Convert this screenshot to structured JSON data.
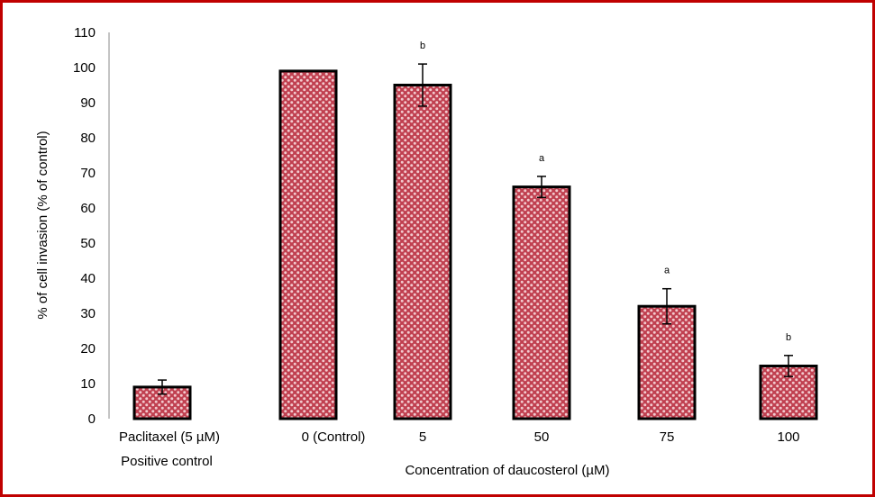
{
  "colors": {
    "frame": "#c00000",
    "bar_fill": "#c04050",
    "bar_pattern_dots": "#f2c9cd",
    "bar_outline": "#000000"
  },
  "chart_data": {
    "type": "bar",
    "categories": [
      "Paclitaxel (5 µM)",
      "0 (Control)",
      "5",
      "50",
      "75",
      "100"
    ],
    "category_sublabel": [
      "Positive control",
      "",
      "",
      "",
      "",
      ""
    ],
    "values": [
      9,
      99,
      95,
      66,
      32,
      15
    ],
    "errors": [
      2,
      0,
      6,
      3,
      5,
      3
    ],
    "annotations": [
      "",
      "",
      "b",
      "a",
      "a",
      "b"
    ],
    "xlabel": "Concentration of daucosterol (µM)",
    "ylabel": "% of cell invasion (% of control)",
    "ylim": [
      0,
      110
    ],
    "yticks": [
      0,
      10,
      20,
      30,
      40,
      50,
      60,
      70,
      80,
      90,
      100,
      110
    ],
    "grid": false
  }
}
